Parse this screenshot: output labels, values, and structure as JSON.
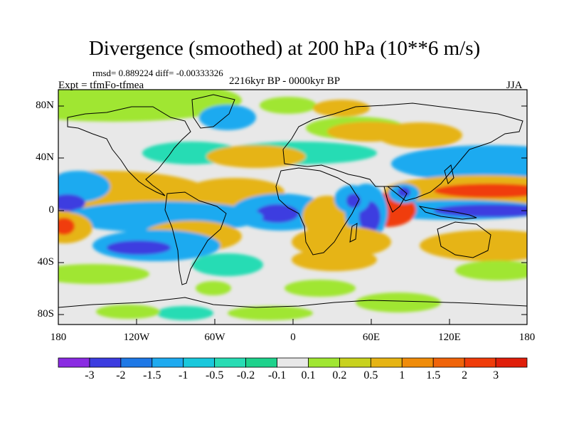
{
  "title": "Divergence (smoothed) at 200 hPa (10**6 m/s)",
  "stats": "rmsd= 0.889224 diff= -0.00333326",
  "experiment": "Expt = tfmFo-tfmea",
  "period": "2216kyr BP - 0000kyr BP",
  "season": "JJA",
  "axes": {
    "y_ticks": [
      "80N",
      "40N",
      "0",
      "40S",
      "80S"
    ],
    "x_ticks": [
      "180",
      "120W",
      "60W",
      "0",
      "60E",
      "120E",
      "180"
    ]
  },
  "colorbar": {
    "labels": [
      "-3",
      "-2",
      "-1.5",
      "-1",
      "-0.5",
      "-0.2",
      "-0.1",
      "0.1",
      "0.2",
      "0.5",
      "1",
      "1.5",
      "2",
      "3"
    ],
    "colors": [
      "#8a2be2",
      "#3c3ce0",
      "#1e78e6",
      "#1eaaf0",
      "#19c8dc",
      "#28dcb4",
      "#1ed28c",
      "#e8e8e8",
      "#a0e632",
      "#c8d21e",
      "#e6b414",
      "#f08c0a",
      "#f0640a",
      "#f03c0a",
      "#e01e0a"
    ]
  },
  "region_color_mapping": {
    "strong_convergence": "#3c3ce0",
    "moderate_convergence": "#1eaaf0",
    "weak_convergence": "#28dcb4",
    "neutral": "#e8e8e8",
    "weak_divergence": "#a0e632",
    "moderate_divergence": "#e6b414",
    "strong_divergence": "#f03c0a"
  }
}
